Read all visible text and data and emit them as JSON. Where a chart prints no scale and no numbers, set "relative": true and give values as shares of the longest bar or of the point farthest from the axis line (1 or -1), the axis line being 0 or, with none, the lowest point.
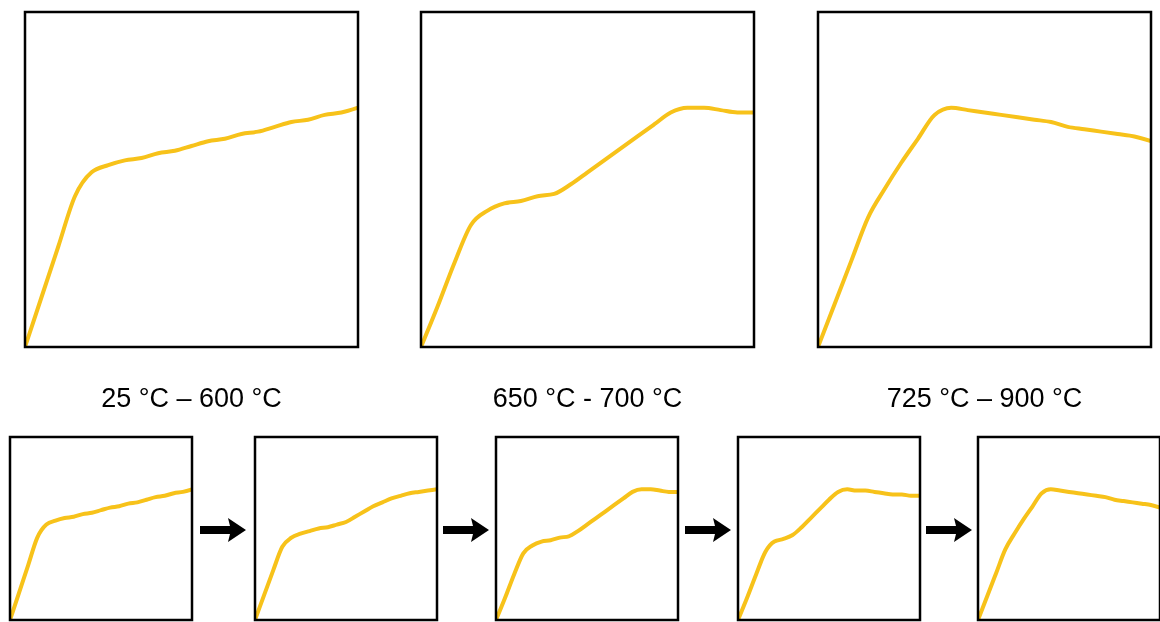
{
  "chart_data": [
    {
      "type": "line",
      "title": "25 °C – 600 °C",
      "relative": true,
      "color": "#f7c21a",
      "categories": [
        null,
        null,
        null,
        null,
        null,
        null,
        null,
        null,
        null,
        null,
        null,
        null,
        null,
        null,
        null,
        null,
        null,
        null,
        null,
        null,
        null
      ],
      "values": [
        0,
        0.21,
        0.42,
        0.63,
        0.73,
        0.76,
        0.78,
        0.79,
        0.81,
        0.82,
        0.84,
        0.86,
        0.87,
        0.89,
        0.9,
        0.92,
        0.94,
        0.95,
        0.97,
        0.98,
        1
      ]
    },
    {
      "type": "line",
      "title": "650 °C - 700 °C",
      "relative": true,
      "color": "#f7c21a",
      "categories": [
        null,
        null,
        null,
        null,
        null,
        null,
        null,
        null,
        null,
        null,
        null,
        null,
        null,
        null,
        null,
        null,
        null,
        null,
        null,
        null,
        null
      ],
      "values": [
        0,
        0.17,
        0.35,
        0.51,
        0.57,
        0.6,
        0.61,
        0.63,
        0.64,
        0.68,
        0.73,
        0.78,
        0.83,
        0.88,
        0.93,
        0.98,
        1,
        1,
        0.99,
        0.98,
        0.98
      ]
    },
    {
      "type": "line",
      "title": "725 °C – 900 °C",
      "relative": true,
      "color": "#f7c21a",
      "categories": [
        null,
        null,
        null,
        null,
        null,
        null,
        null,
        null,
        null,
        null,
        null,
        null,
        null,
        null,
        null,
        null,
        null,
        null,
        null,
        null,
        null
      ],
      "values": [
        0,
        0.18,
        0.36,
        0.54,
        0.66,
        0.77,
        0.87,
        0.97,
        1,
        0.99,
        0.98,
        0.97,
        0.96,
        0.95,
        0.94,
        0.92,
        0.91,
        0.9,
        0.89,
        0.88,
        0.86
      ]
    },
    {
      "type": "line",
      "relative": true,
      "color": "#f7c21a",
      "categories": [
        null,
        null,
        null,
        null,
        null,
        null,
        null,
        null,
        null,
        null,
        null,
        null,
        null,
        null,
        null,
        null,
        null,
        null,
        null,
        null,
        null
      ],
      "values": [
        0,
        0.21,
        0.42,
        0.63,
        0.73,
        0.76,
        0.78,
        0.79,
        0.81,
        0.82,
        0.84,
        0.86,
        0.87,
        0.89,
        0.9,
        0.92,
        0.94,
        0.95,
        0.97,
        0.98,
        1
      ]
    },
    {
      "type": "line",
      "relative": true,
      "color": "#f7c21a",
      "categories": [
        null,
        null,
        null,
        null,
        null,
        null,
        null,
        null,
        null,
        null,
        null,
        null,
        null,
        null,
        null,
        null,
        null,
        null,
        null,
        null,
        null
      ],
      "values": [
        0,
        0.19,
        0.38,
        0.56,
        0.63,
        0.66,
        0.68,
        0.7,
        0.71,
        0.73,
        0.75,
        0.79,
        0.83,
        0.87,
        0.9,
        0.93,
        0.95,
        0.97,
        0.98,
        0.99,
        1
      ]
    },
    {
      "type": "line",
      "relative": true,
      "color": "#f7c21a",
      "categories": [
        null,
        null,
        null,
        null,
        null,
        null,
        null,
        null,
        null,
        null,
        null,
        null,
        null,
        null,
        null,
        null,
        null,
        null,
        null,
        null,
        null
      ],
      "values": [
        0,
        0.17,
        0.35,
        0.51,
        0.57,
        0.6,
        0.61,
        0.63,
        0.64,
        0.68,
        0.73,
        0.78,
        0.83,
        0.88,
        0.93,
        0.98,
        1,
        1,
        0.99,
        0.98,
        0.98
      ]
    },
    {
      "type": "line",
      "relative": true,
      "color": "#f7c21a",
      "categories": [
        null,
        null,
        null,
        null,
        null,
        null,
        null,
        null,
        null,
        null,
        null,
        null,
        null,
        null,
        null,
        null,
        null,
        null,
        null,
        null,
        null
      ],
      "values": [
        0,
        0.17,
        0.35,
        0.52,
        0.6,
        0.62,
        0.65,
        0.71,
        0.78,
        0.85,
        0.92,
        0.98,
        1,
        0.99,
        0.99,
        0.98,
        0.97,
        0.96,
        0.96,
        0.95,
        0.95
      ]
    },
    {
      "type": "line",
      "relative": true,
      "color": "#f7c21a",
      "categories": [
        null,
        null,
        null,
        null,
        null,
        null,
        null,
        null,
        null,
        null,
        null,
        null,
        null,
        null,
        null,
        null,
        null,
        null,
        null,
        null,
        null
      ],
      "values": [
        0,
        0.18,
        0.36,
        0.54,
        0.66,
        0.77,
        0.87,
        0.97,
        1,
        0.99,
        0.98,
        0.97,
        0.96,
        0.95,
        0.94,
        0.92,
        0.91,
        0.9,
        0.89,
        0.88,
        0.86
      ]
    }
  ]
}
